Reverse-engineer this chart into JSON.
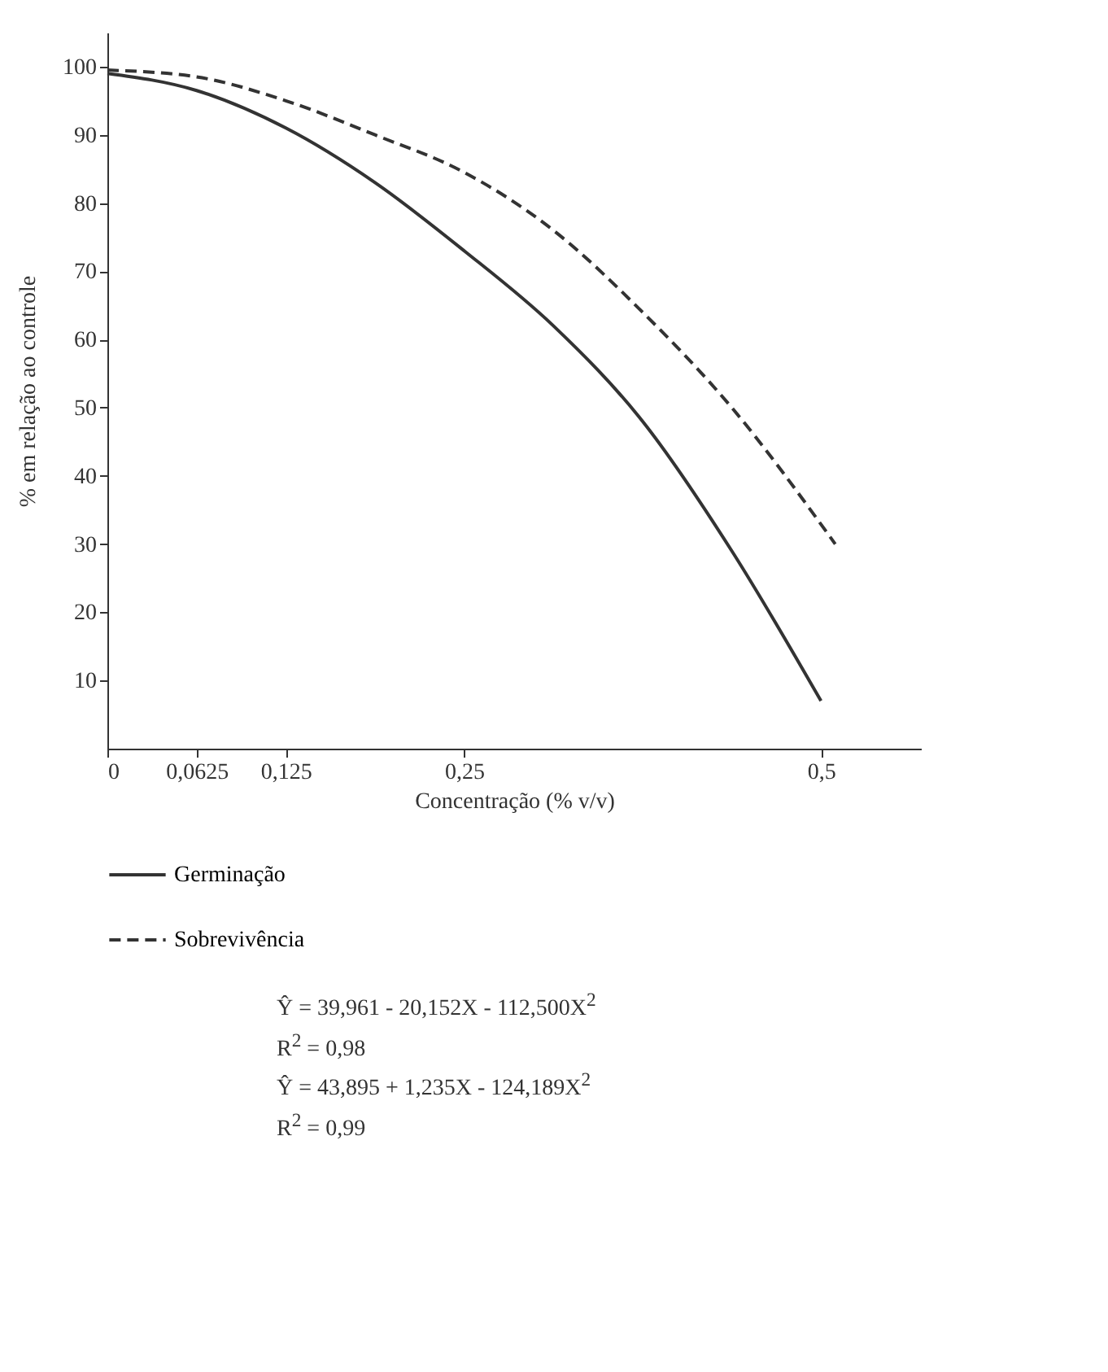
{
  "chart_data": {
    "type": "line",
    "xlabel": "Concentração  (% v/v)",
    "ylabel": "% em relação ao controle",
    "xlim": [
      0,
      0.57
    ],
    "ylim": [
      0,
      105
    ],
    "xticks": [
      0,
      {
        "value": 0.0625,
        "label": "0,0625"
      },
      {
        "value": 0.125,
        "label": "0,125"
      },
      {
        "value": 0.25,
        "label": "0,25"
      },
      {
        "value": 0.5,
        "label": "0,5"
      }
    ],
    "yticks": [
      10,
      20,
      30,
      40,
      50,
      60,
      70,
      80,
      90,
      100
    ],
    "legend": "bottom",
    "series": [
      {
        "name": "Germinação",
        "color": "#333333",
        "line_style": "solid",
        "x": [
          0,
          0.0625,
          0.125,
          0.1875,
          0.25,
          0.3125,
          0.375,
          0.4375,
          0.5
        ],
        "values": [
          99,
          96.5,
          91,
          83,
          73,
          62,
          48,
          29,
          7
        ]
      },
      {
        "name": "Sobrevivência",
        "color": "#333333",
        "line_style": "dashed",
        "x": [
          0,
          0.0625,
          0.125,
          0.1875,
          0.25,
          0.3125,
          0.375,
          0.4375,
          0.51
        ],
        "values": [
          99.5,
          98.5,
          95,
          90,
          84.5,
          76,
          64,
          50,
          30
        ]
      }
    ],
    "annotations": [
      "Ŷ = 39,961 - 20,152X - 112,500X$^{2}$",
      "R$^{2}$ = 0,98",
      "Ŷ = 43,895 + 1,235X - 124,189X$^{2}$",
      "R$^{2}$ = 0,99"
    ]
  }
}
